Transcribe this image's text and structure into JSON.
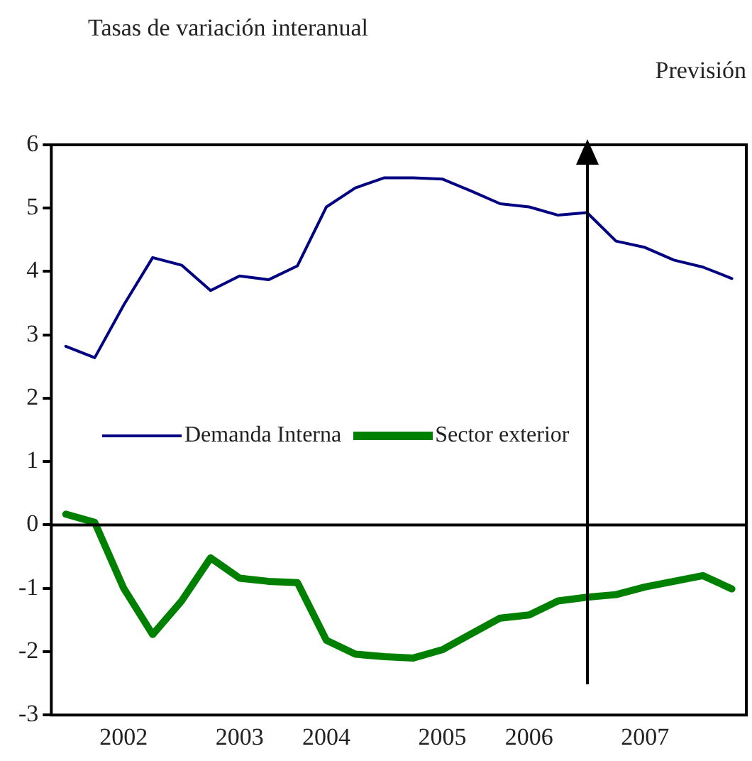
{
  "chart_data": {
    "type": "line",
    "title": "Tasas de variación interanual",
    "categories": [
      null,
      null,
      "2002",
      null,
      null,
      null,
      "2003",
      null,
      null,
      "2004",
      null,
      null,
      null,
      "2005",
      null,
      null,
      "2006",
      null,
      null,
      null,
      "2007",
      null,
      null,
      null
    ],
    "series": [
      {
        "name": "Demanda Interna",
        "color": "#000080",
        "values": [
          2.82,
          2.64,
          3.47,
          4.22,
          4.1,
          3.7,
          3.93,
          3.87,
          4.09,
          5.02,
          5.32,
          5.48,
          5.48,
          5.46,
          5.27,
          5.07,
          5.02,
          4.89,
          4.93,
          4.48,
          4.38,
          4.18,
          4.07,
          3.89
        ]
      },
      {
        "name": "Sector exterior",
        "color": "#008000",
        "values": [
          0.17,
          0.04,
          -1.0,
          -1.73,
          -1.2,
          -0.52,
          -0.84,
          -0.89,
          -0.91,
          -1.82,
          -2.04,
          -2.08,
          -2.1,
          -1.97,
          -1.72,
          -1.47,
          -1.42,
          -1.2,
          -1.14,
          -1.1,
          -0.98,
          -0.89,
          -0.8,
          -1.01
        ]
      }
    ],
    "ylim": [
      -3,
      6
    ],
    "yticks": [
      -3,
      -2,
      -1,
      0,
      1,
      2,
      3,
      4,
      5,
      6
    ],
    "ref_lines": [
      {
        "axis": "y",
        "value": 0,
        "label": null
      }
    ],
    "annotations": [
      "Previsión"
    ],
    "grid": false,
    "legend": "left",
    "marker": "none",
    "line_style": "solid"
  }
}
